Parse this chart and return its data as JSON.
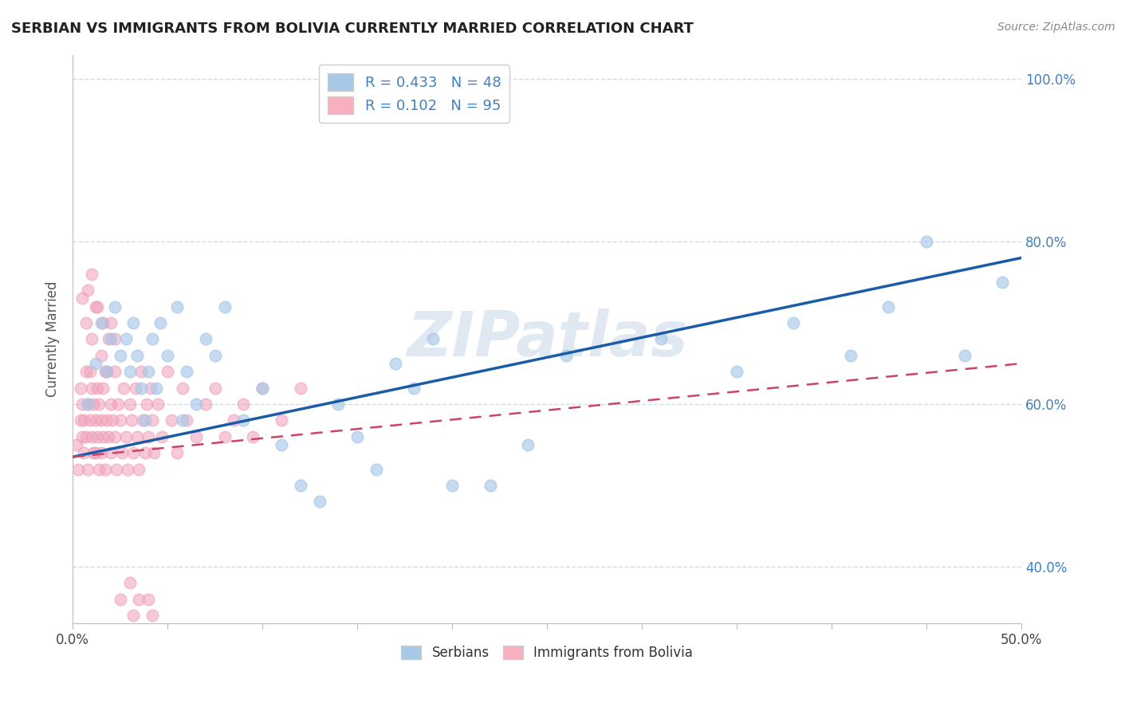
{
  "title": "SERBIAN VS IMMIGRANTS FROM BOLIVIA CURRENTLY MARRIED CORRELATION CHART",
  "source": "Source: ZipAtlas.com",
  "ylabel": "Currently Married",
  "xlim": [
    0.0,
    0.5
  ],
  "ylim": [
    0.33,
    1.03
  ],
  "xtick_positions": [
    0.0,
    0.05,
    0.1,
    0.15,
    0.2,
    0.25,
    0.3,
    0.35,
    0.4,
    0.45,
    0.5
  ],
  "xtick_labels": [
    "0.0%",
    "",
    "",
    "",
    "",
    "",
    "",
    "",
    "",
    "",
    "50.0%"
  ],
  "ytick_positions": [
    0.4,
    0.6,
    0.8,
    1.0
  ],
  "ytick_labels": [
    "40.0%",
    "60.0%",
    "80.0%",
    "100.0%"
  ],
  "watermark": "ZIPatlas",
  "legend_r1": "R = 0.433   N = 48",
  "legend_r2": "R = 0.102   N = 95",
  "legend_color1": "#a8c8e8",
  "legend_color2": "#f8b0c0",
  "serbian_dot_color": "#a8c8e8",
  "bolivia_dot_color": "#f0a0b8",
  "serbian_line_color": "#1a5ca8",
  "bolivia_line_color": "#cc4466",
  "grid_color": "#d0dde8",
  "label_color": "#4080c0",
  "background_color": "#ffffff",
  "serbia_intercept": 0.535,
  "serbia_slope_per50": 0.245,
  "bolivia_intercept": 0.535,
  "bolivia_slope_per50": 0.115,
  "serbian_x": [
    0.008,
    0.012,
    0.015,
    0.018,
    0.02,
    0.022,
    0.025,
    0.028,
    0.03,
    0.032,
    0.034,
    0.036,
    0.038,
    0.04,
    0.042,
    0.044,
    0.046,
    0.05,
    0.055,
    0.058,
    0.06,
    0.065,
    0.07,
    0.075,
    0.08,
    0.09,
    0.1,
    0.11,
    0.12,
    0.13,
    0.14,
    0.15,
    0.16,
    0.17,
    0.18,
    0.19,
    0.2,
    0.22,
    0.24,
    0.26,
    0.31,
    0.35,
    0.38,
    0.41,
    0.43,
    0.45,
    0.47,
    0.49
  ],
  "serbian_y": [
    0.6,
    0.65,
    0.7,
    0.64,
    0.68,
    0.72,
    0.66,
    0.68,
    0.64,
    0.7,
    0.66,
    0.62,
    0.58,
    0.64,
    0.68,
    0.62,
    0.7,
    0.66,
    0.72,
    0.58,
    0.64,
    0.6,
    0.68,
    0.66,
    0.72,
    0.58,
    0.62,
    0.55,
    0.5,
    0.48,
    0.6,
    0.56,
    0.52,
    0.65,
    0.62,
    0.68,
    0.5,
    0.5,
    0.55,
    0.66,
    0.68,
    0.64,
    0.7,
    0.66,
    0.72,
    0.8,
    0.66,
    0.75
  ],
  "bolivia_x": [
    0.002,
    0.003,
    0.004,
    0.004,
    0.005,
    0.005,
    0.006,
    0.006,
    0.007,
    0.007,
    0.008,
    0.008,
    0.009,
    0.009,
    0.01,
    0.01,
    0.011,
    0.011,
    0.012,
    0.012,
    0.013,
    0.013,
    0.014,
    0.014,
    0.015,
    0.015,
    0.016,
    0.016,
    0.017,
    0.018,
    0.018,
    0.019,
    0.02,
    0.02,
    0.021,
    0.022,
    0.022,
    0.023,
    0.024,
    0.025,
    0.026,
    0.027,
    0.028,
    0.029,
    0.03,
    0.031,
    0.032,
    0.033,
    0.034,
    0.035,
    0.036,
    0.037,
    0.038,
    0.039,
    0.04,
    0.041,
    0.042,
    0.043,
    0.045,
    0.047,
    0.05,
    0.052,
    0.055,
    0.058,
    0.06,
    0.065,
    0.07,
    0.075,
    0.08,
    0.085,
    0.09,
    0.095,
    0.1,
    0.11,
    0.12,
    0.005,
    0.007,
    0.01,
    0.012,
    0.015,
    0.017,
    0.02,
    0.022,
    0.025,
    0.03,
    0.032,
    0.035,
    0.038,
    0.04,
    0.042,
    0.008,
    0.01,
    0.013,
    0.016,
    0.019
  ],
  "bolivia_y": [
    0.55,
    0.52,
    0.58,
    0.62,
    0.56,
    0.6,
    0.54,
    0.58,
    0.64,
    0.56,
    0.6,
    0.52,
    0.58,
    0.64,
    0.56,
    0.62,
    0.54,
    0.6,
    0.58,
    0.54,
    0.62,
    0.56,
    0.52,
    0.6,
    0.58,
    0.54,
    0.62,
    0.56,
    0.52,
    0.58,
    0.64,
    0.56,
    0.6,
    0.54,
    0.58,
    0.64,
    0.56,
    0.52,
    0.6,
    0.58,
    0.54,
    0.62,
    0.56,
    0.52,
    0.6,
    0.58,
    0.54,
    0.62,
    0.56,
    0.52,
    0.64,
    0.58,
    0.54,
    0.6,
    0.56,
    0.62,
    0.58,
    0.54,
    0.6,
    0.56,
    0.64,
    0.58,
    0.54,
    0.62,
    0.58,
    0.56,
    0.6,
    0.62,
    0.56,
    0.58,
    0.6,
    0.56,
    0.62,
    0.58,
    0.62,
    0.73,
    0.7,
    0.68,
    0.72,
    0.66,
    0.64,
    0.7,
    0.68,
    0.36,
    0.38,
    0.34,
    0.36,
    0.32,
    0.36,
    0.34,
    0.74,
    0.76,
    0.72,
    0.7,
    0.68
  ]
}
